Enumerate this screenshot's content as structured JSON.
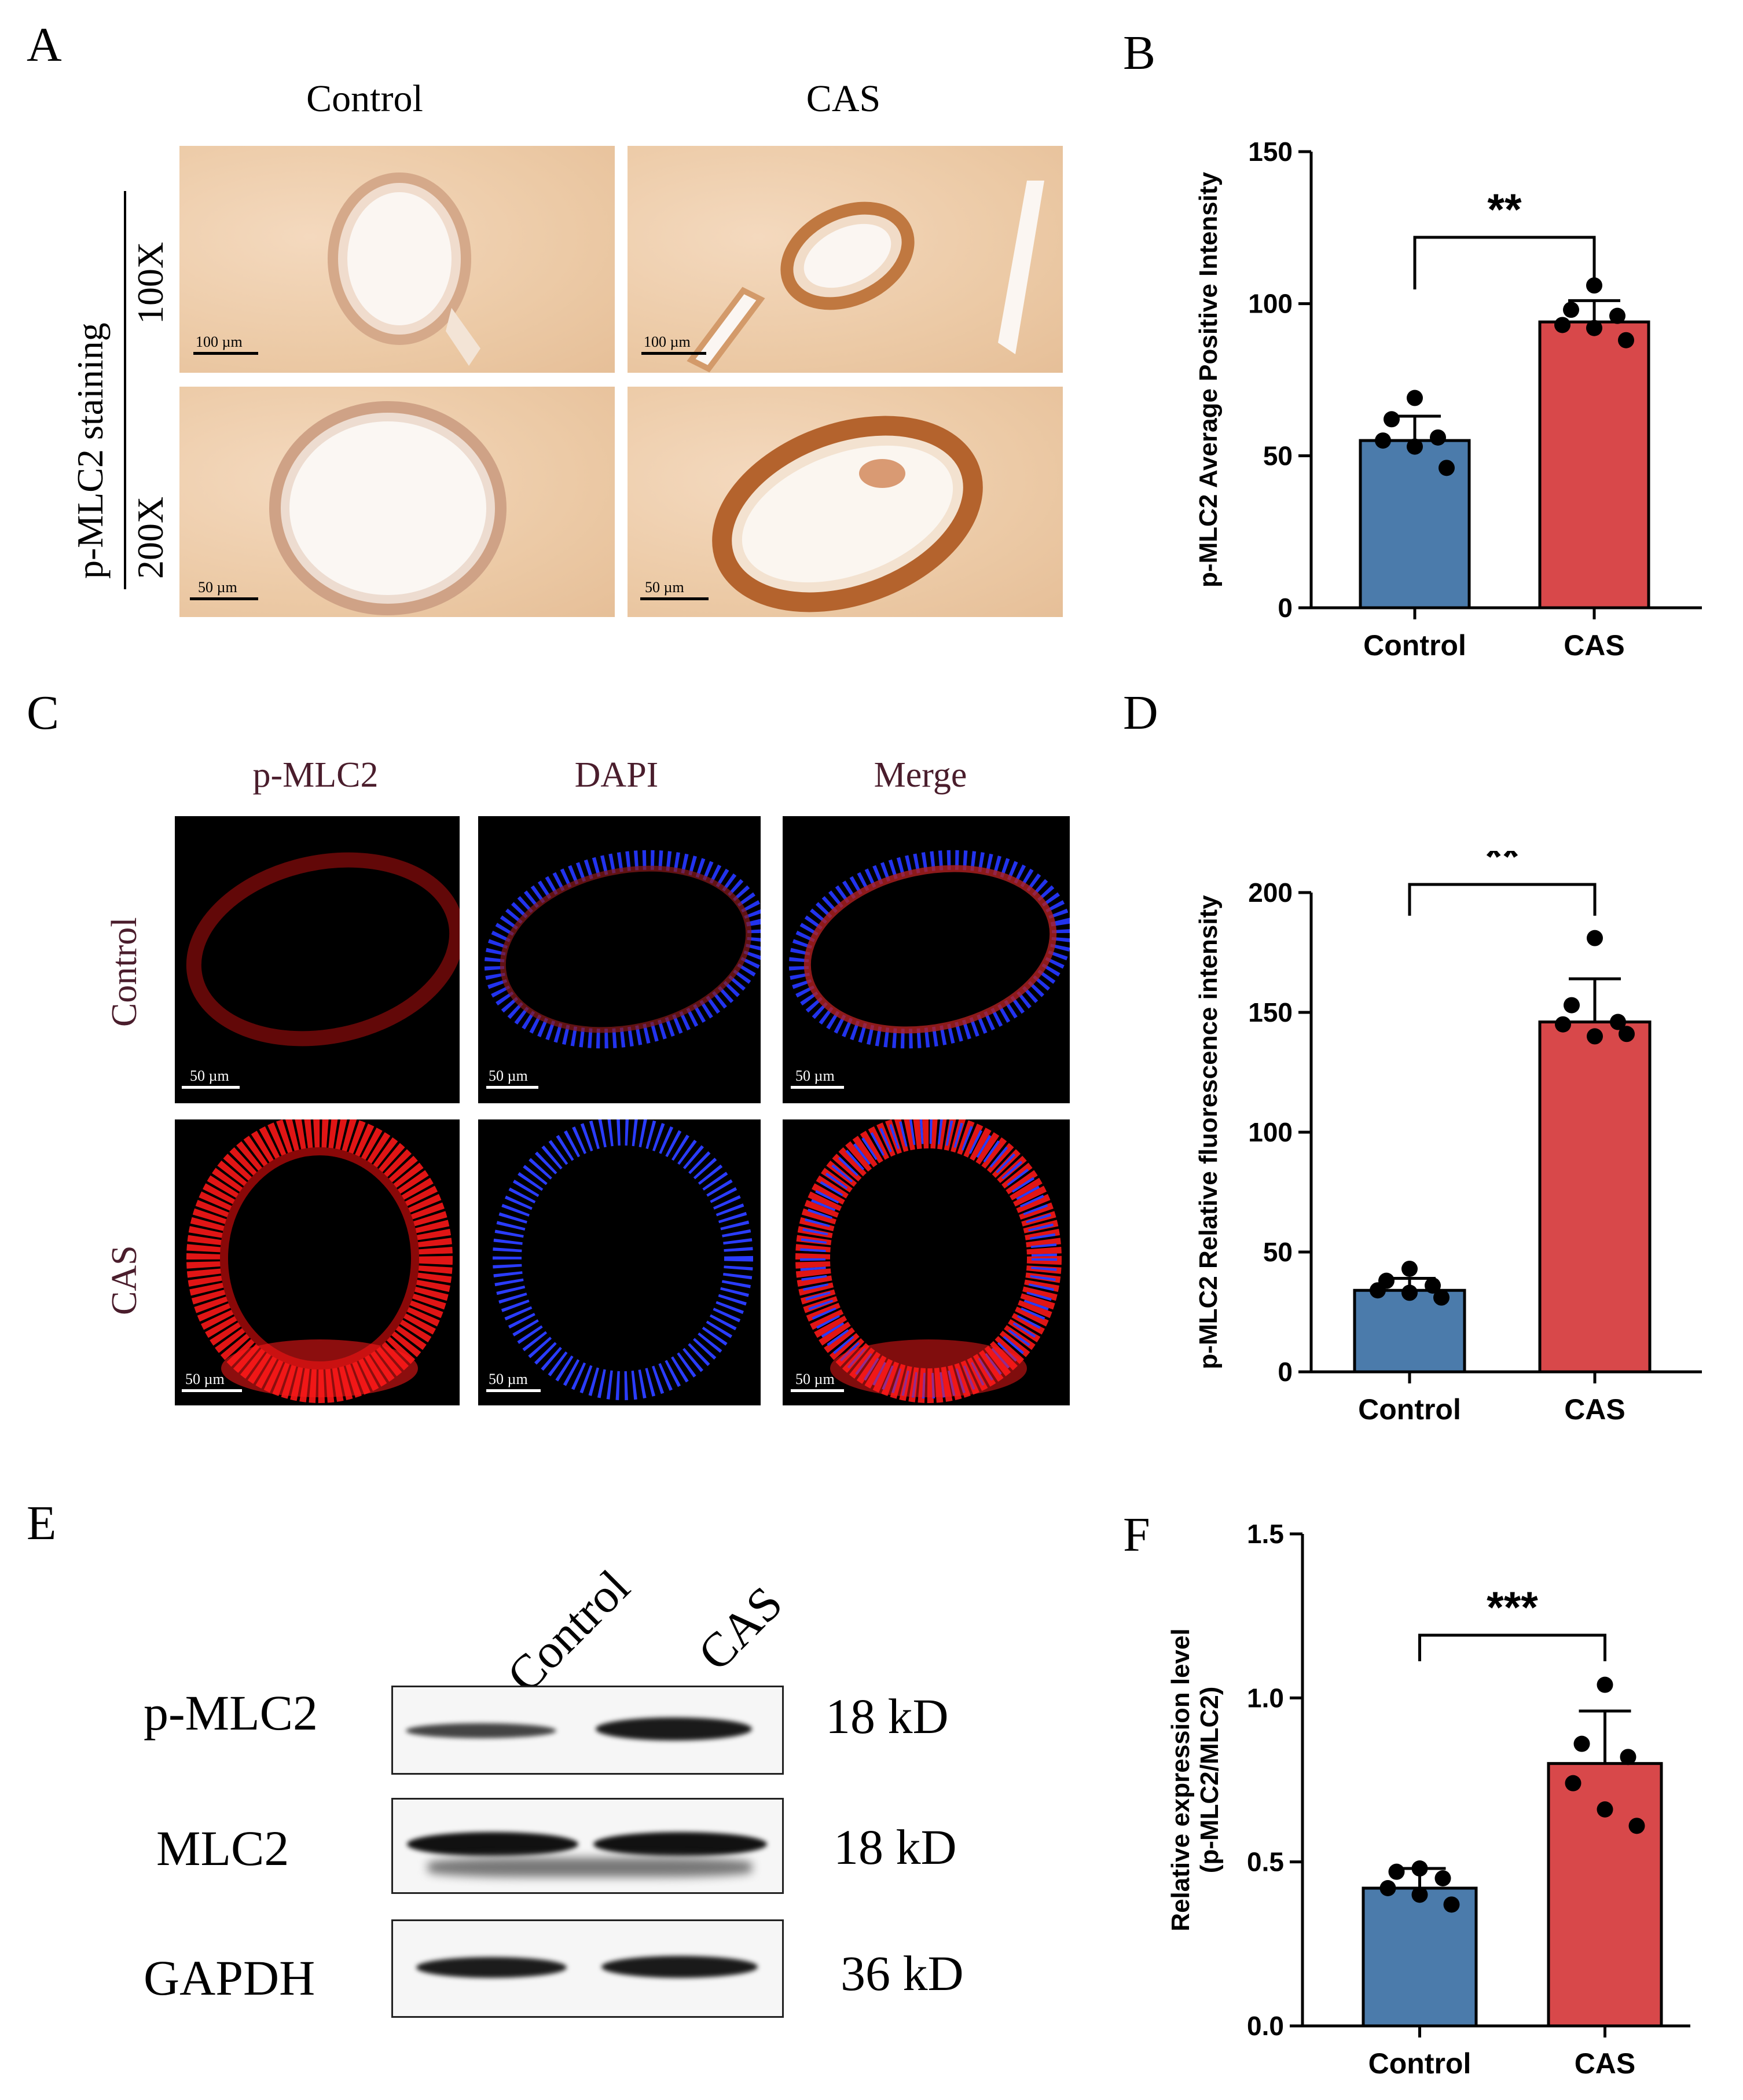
{
  "panels": {
    "A": {
      "letter": "A",
      "columns": [
        "Control",
        "CAS"
      ],
      "row_group_label": "p-MLC2 staining",
      "rows": [
        "100X",
        "200X"
      ],
      "scalebars": [
        "100 µm",
        "100 µm",
        "50 µm",
        "50 µm"
      ]
    },
    "C": {
      "letter": "C",
      "columns": [
        "p-MLC2",
        "DAPI",
        "Merge"
      ],
      "rows": [
        "Control",
        "CAS"
      ],
      "scalebar": "50 µm"
    },
    "E": {
      "letter": "E",
      "lanes": [
        "Control",
        "CAS"
      ],
      "blots": [
        {
          "protein": "p-MLC2",
          "size": "18 kD"
        },
        {
          "protein": "MLC2",
          "size": "18 kD"
        },
        {
          "protein": "GAPDH",
          "size": "36 kD"
        }
      ]
    },
    "colors": {
      "control": "#4b7bab",
      "cas": "#d8484a",
      "ihc_stain": "#c9783c",
      "if_red": "#ff1a1a",
      "if_blue": "#2a3cff"
    }
  },
  "chart_data": [
    {
      "panel": "B",
      "type": "bar",
      "categories": [
        "Control",
        "CAS"
      ],
      "values": [
        55,
        94
      ],
      "errors": [
        8,
        7
      ],
      "points": [
        [
          69,
          62,
          56,
          55,
          53,
          46
        ],
        [
          106,
          98,
          96,
          93,
          92,
          88
        ]
      ],
      "ylabel": "p-MLC2  Average Positive Intensity",
      "ylim": [
        0,
        150
      ],
      "yticks": [
        0,
        50,
        100,
        150
      ],
      "significance": "**",
      "grid": false
    },
    {
      "panel": "D",
      "type": "bar",
      "categories": [
        "Control",
        "CAS"
      ],
      "values": [
        34,
        146
      ],
      "errors": [
        5,
        18
      ],
      "points": [
        [
          43,
          38,
          36,
          34,
          33,
          31
        ],
        [
          181,
          153,
          146,
          145,
          140,
          141
        ]
      ],
      "ylabel": "p-MLC2 Relative fluorescence intensity",
      "ylim": [
        0,
        200
      ],
      "yticks": [
        0,
        50,
        100,
        150,
        200
      ],
      "significance": "**",
      "grid": false
    },
    {
      "panel": "F",
      "type": "bar",
      "categories": [
        "Control",
        "CAS"
      ],
      "values": [
        0.42,
        0.8
      ],
      "errors": [
        0.06,
        0.16
      ],
      "points": [
        [
          0.48,
          0.47,
          0.45,
          0.42,
          0.4,
          0.37
        ],
        [
          1.04,
          0.86,
          0.82,
          0.74,
          0.66,
          0.61
        ]
      ],
      "ylabel": "Relative expression level",
      "ylabel2": "(p-MLC2/MLC2)",
      "ylim": [
        0,
        1.5
      ],
      "yticks": [
        "0.0",
        "0.5",
        "1.0",
        "1.5"
      ],
      "significance": "***",
      "grid": false
    }
  ]
}
